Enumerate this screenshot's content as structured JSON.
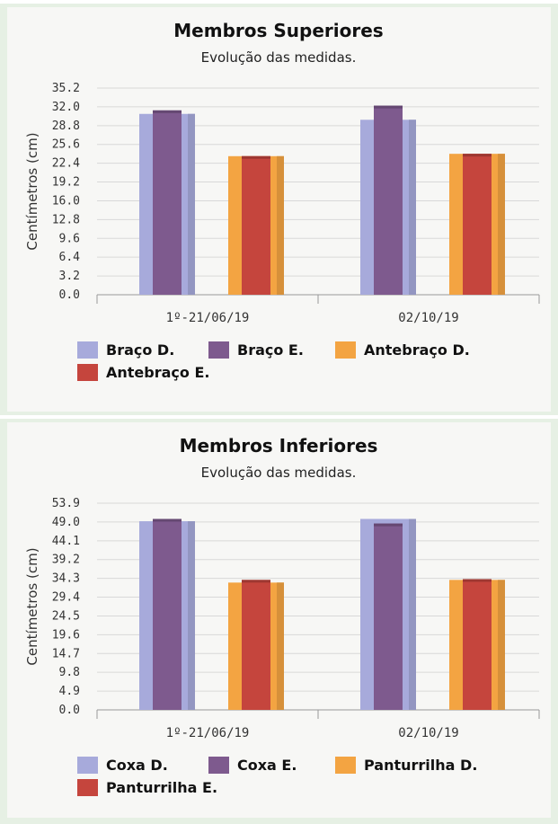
{
  "chart_data": [
    {
      "type": "bar",
      "title": "Membros Superiores",
      "subtitle": "Evolução das medidas.",
      "ylabel": "Centímetros (cm)",
      "xlabel": "",
      "ylim": [
        0,
        35.2
      ],
      "yticks": [
        "0.0",
        "3.2",
        "6.4",
        "9.6",
        "12.8",
        "16.0",
        "19.2",
        "22.4",
        "25.6",
        "28.8",
        "32.0",
        "35.2"
      ],
      "categories": [
        "1º-21/06/19",
        "02/10/19"
      ],
      "series": [
        {
          "name": "Braço D.",
          "values": [
            30.8,
            29.8
          ],
          "color": "#a7aadb"
        },
        {
          "name": "Braço E.",
          "values": [
            31.4,
            32.2
          ],
          "color": "#7e5a8e"
        },
        {
          "name": "Antebraço D.",
          "values": [
            23.6,
            24.0
          ],
          "color": "#f3a442"
        },
        {
          "name": "Antebraço E.",
          "values": [
            23.6,
            24.0
          ],
          "color": "#c5453d"
        }
      ],
      "grid": true,
      "legend": "bottom"
    },
    {
      "type": "bar",
      "title": "Membros Inferiores",
      "subtitle": "Evolução das medidas.",
      "ylabel": "Centímetros (cm)",
      "xlabel": "",
      "ylim": [
        0,
        53.9
      ],
      "yticks": [
        "0.0",
        "4.9",
        "9.8",
        "14.7",
        "19.6",
        "24.5",
        "29.4",
        "34.3",
        "39.2",
        "44.1",
        "49.0",
        "53.9"
      ],
      "categories": [
        "1º-21/06/19",
        "02/10/19"
      ],
      "series": [
        {
          "name": "Coxa D.",
          "values": [
            49.2,
            49.8
          ],
          "color": "#a7aadb"
        },
        {
          "name": "Coxa E.",
          "values": [
            49.8,
            48.6
          ],
          "color": "#7e5a8e"
        },
        {
          "name": "Panturrilha D.",
          "values": [
            33.2,
            33.9
          ],
          "color": "#f3a442"
        },
        {
          "name": "Panturrilha E.",
          "values": [
            33.9,
            34.1
          ],
          "color": "#c5453d"
        }
      ],
      "grid": true,
      "legend": "bottom"
    }
  ]
}
